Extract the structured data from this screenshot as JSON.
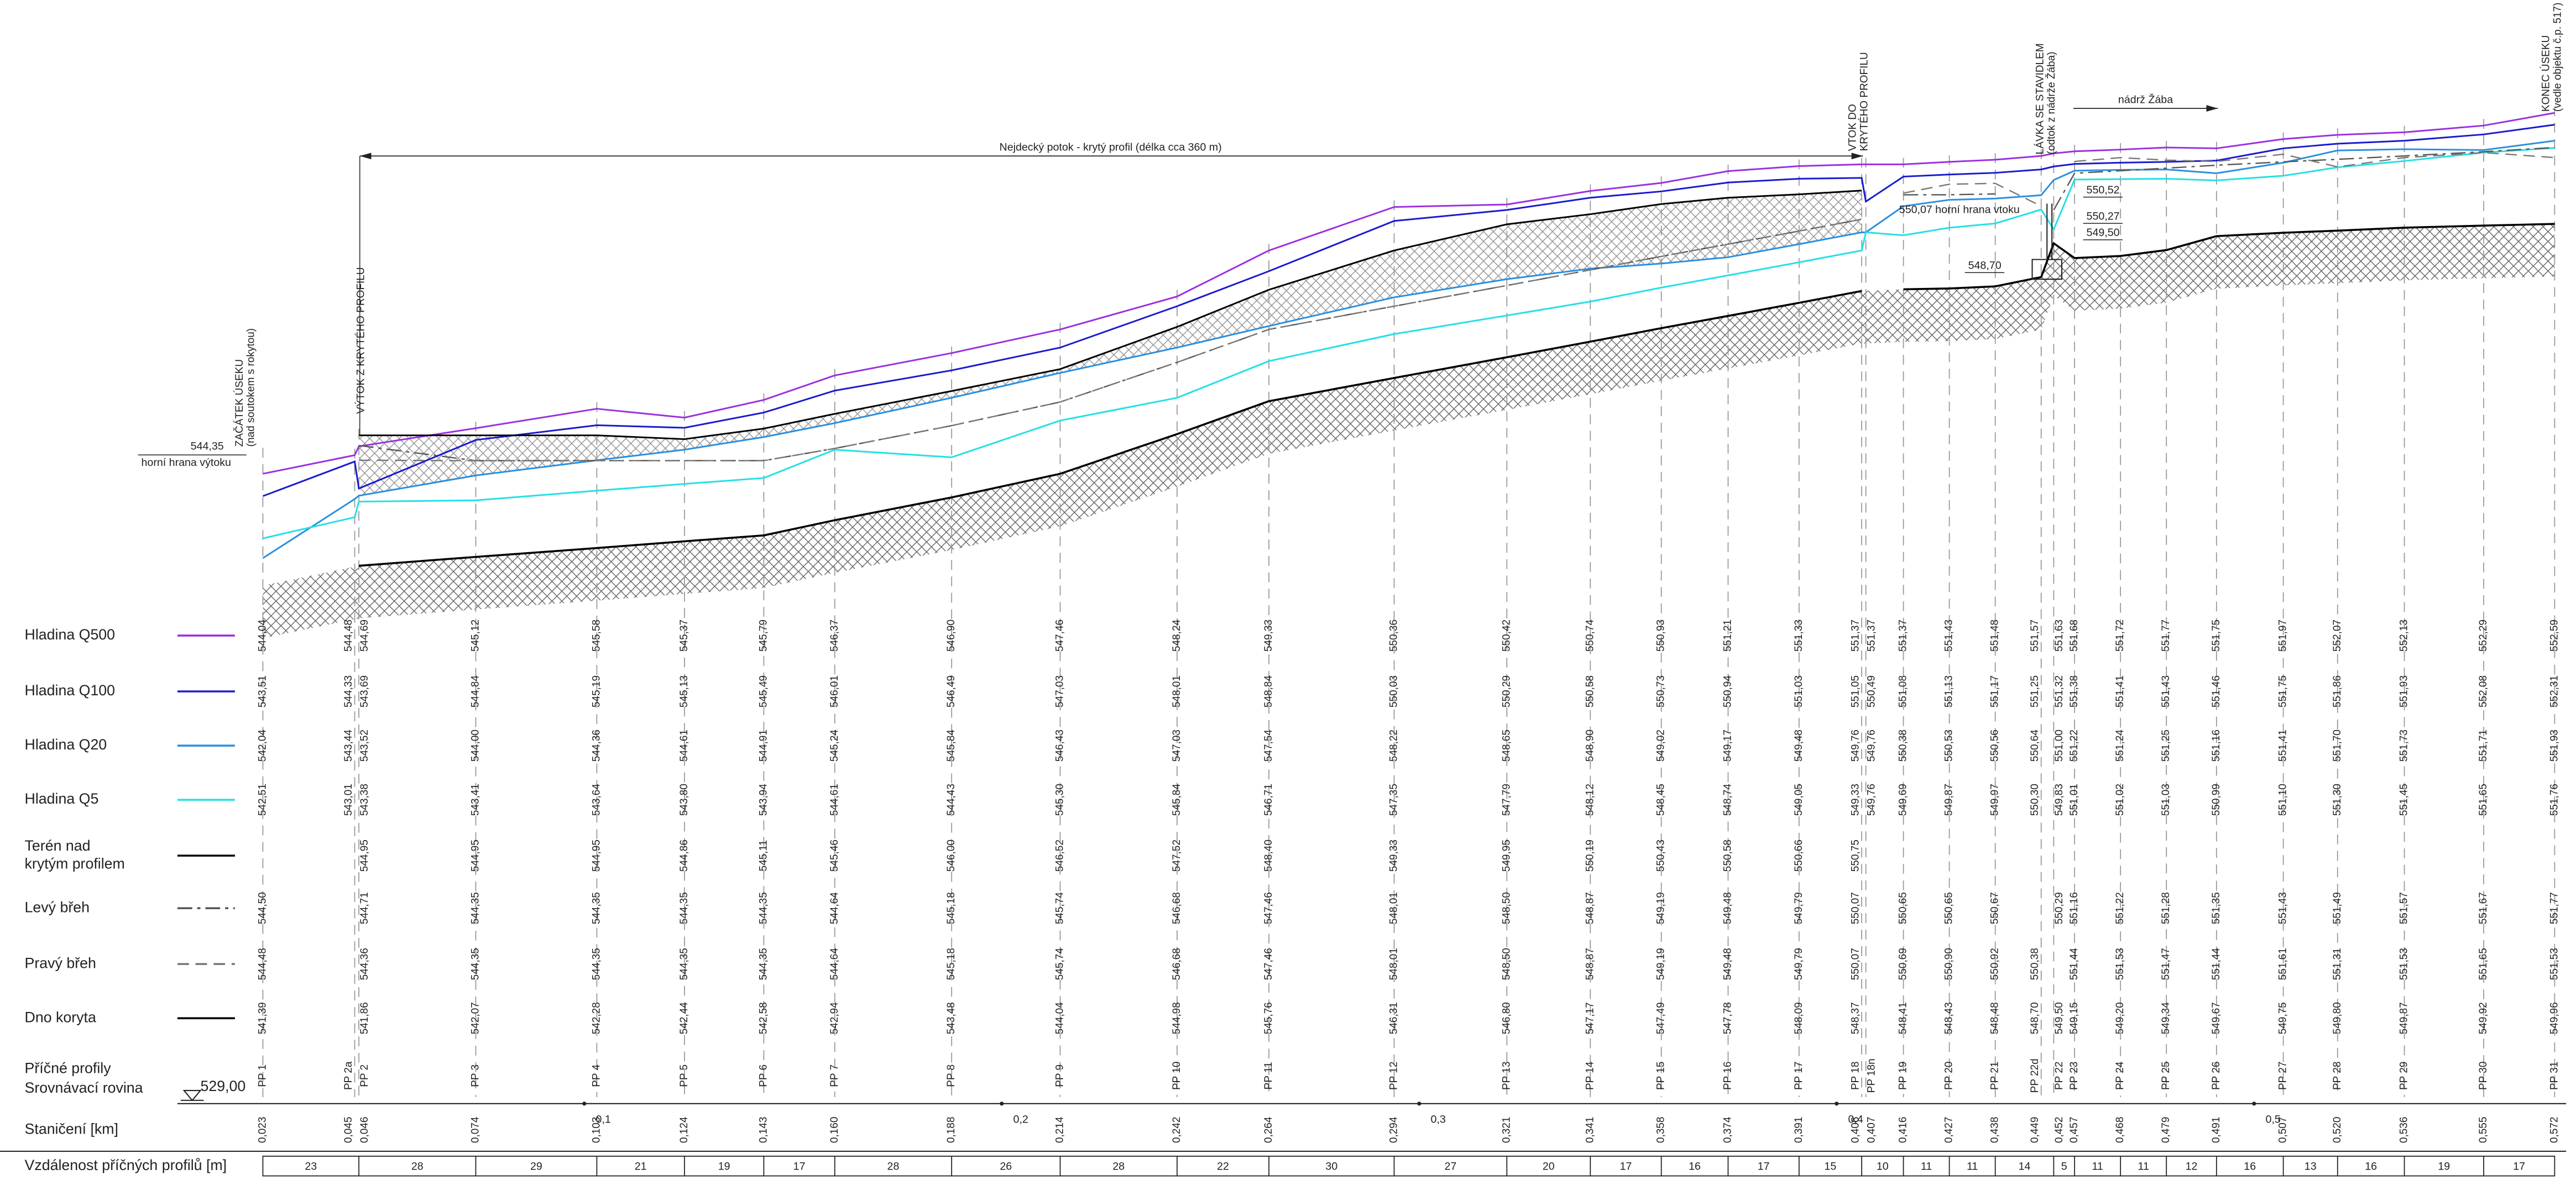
{
  "legend": [
    {
      "label": [
        "Hladina Q500"
      ],
      "color": "#9b30e0"
    },
    {
      "label": [
        "Hladina Q100"
      ],
      "color": "#1a1ad0"
    },
    {
      "label": [
        "Hladina Q20"
      ],
      "color": "#2a8fe0"
    },
    {
      "label": [
        "Hladina Q5"
      ],
      "color": "#22e0e6"
    },
    {
      "label": [
        "Terén nad",
        "krytým profilem"
      ],
      "color": "#000000"
    },
    {
      "label": [
        "Levý břeh"
      ],
      "color": "#555555"
    },
    {
      "label": [
        "Pravý břeh"
      ],
      "color": "#777777"
    },
    {
      "label": [
        "Dno koryta"
      ],
      "color": "#000000"
    }
  ],
  "rows": {
    "profiles": "Příčné profily",
    "datum": "Srovnávací rovina",
    "datum_value": "529,00",
    "station": "Staničení [km]",
    "lengths": "Vzdálenost příčných profilů [m]"
  },
  "profiles": [
    {
      "name": "PP 1",
      "station": "0,023",
      "values": [
        "544,04",
        "543,51",
        "542,04",
        "542,51",
        null,
        "544,50",
        "544,48",
        "541,39"
      ]
    },
    {
      "name": "PP 2a",
      "station": "0,045",
      "values": [
        "544,48",
        "544,33",
        "543,44",
        "543,01",
        null,
        null,
        null,
        null
      ]
    },
    {
      "name": "PP 2",
      "station": "0,046",
      "values": [
        "544,69",
        "543,69",
        "543,52",
        "543,38",
        "544,95",
        "544,71",
        "544,36",
        "541,86"
      ]
    },
    {
      "name": "PP 3",
      "station": "0,074",
      "values": [
        "545,12",
        "544,84",
        "544,00",
        "543,41",
        "544,95",
        "544,35",
        "544,35",
        "542,07"
      ]
    },
    {
      "name": "PP 4",
      "station": "0,103",
      "values": [
        "545,58",
        "545,19",
        "544,36",
        "543,64",
        "544,95",
        "544,35",
        "544,35",
        "542,28"
      ]
    },
    {
      "name": "PP 5",
      "station": "0,124",
      "values": [
        "545,37",
        "545,13",
        "544,61",
        "543,80",
        "544,86",
        "544,35",
        "544,35",
        "542,44"
      ]
    },
    {
      "name": "PP 6",
      "station": "0,143",
      "values": [
        "545,79",
        "545,49",
        "544,91",
        "543,94",
        "545,11",
        "544,35",
        "544,35",
        "542,58"
      ]
    },
    {
      "name": "PP 7",
      "station": "0,160",
      "values": [
        "546,37",
        "546,01",
        "545,24",
        "544,61",
        "545,46",
        "544,64",
        "544,64",
        "542,94"
      ]
    },
    {
      "name": "PP 8",
      "station": "0,188",
      "values": [
        "546,90",
        "546,49",
        "545,84",
        "544,43",
        "546,00",
        "545,18",
        "545,18",
        "543,48"
      ]
    },
    {
      "name": "PP 9",
      "station": "0,214",
      "values": [
        "547,46",
        "547,03",
        "546,43",
        "545,30",
        "546,52",
        "545,74",
        "545,74",
        "544,04"
      ]
    },
    {
      "name": "PP 10",
      "station": "0,242",
      "values": [
        "548,24",
        "548,01",
        "547,03",
        "545,84",
        "547,52",
        "546,68",
        "546,68",
        "544,98"
      ]
    },
    {
      "name": "PP 11",
      "station": "0,264",
      "values": [
        "549,33",
        "548,84",
        "547,54",
        "546,71",
        "548,40",
        "547,46",
        "547,46",
        "545,76"
      ]
    },
    {
      "name": "PP 12",
      "station": "0,294",
      "values": [
        "550,36",
        "550,03",
        "548,22",
        "547,35",
        "549,33",
        "548,01",
        "548,01",
        "546,31"
      ]
    },
    {
      "name": "PP 13",
      "station": "0,321",
      "values": [
        "550,42",
        "550,29",
        "548,65",
        "547,79",
        "549,95",
        "548,50",
        "548,50",
        "546,80"
      ]
    },
    {
      "name": "PP 14",
      "station": "0,341",
      "values": [
        "550,74",
        "550,58",
        "548,90",
        "548,12",
        "550,19",
        "548,87",
        "548,87",
        "547,17"
      ]
    },
    {
      "name": "PP 15",
      "station": "0,358",
      "values": [
        "550,93",
        "550,73",
        "549,02",
        "548,45",
        "550,43",
        "549,19",
        "549,19",
        "547,49"
      ]
    },
    {
      "name": "PP 16",
      "station": "0,374",
      "values": [
        "551,21",
        "550,94",
        "549,17",
        "548,74",
        "550,58",
        "549,48",
        "549,48",
        "547,78"
      ]
    },
    {
      "name": "PP 17",
      "station": "0,391",
      "values": [
        "551,33",
        "551,03",
        "549,48",
        "549,05",
        "550,66",
        "549,79",
        "549,79",
        "548,09"
      ]
    },
    {
      "name": "PP 18",
      "station": "0,406",
      "values": [
        "551,37",
        "551,05",
        "549,76",
        "549,33",
        "550,75",
        "550,07",
        "550,07",
        "548,37"
      ]
    },
    {
      "name": "PP 18n",
      "station": "0,407",
      "values": [
        "551,37",
        "550,49",
        "549,76",
        "549,76",
        null,
        null,
        null,
        null
      ]
    },
    {
      "name": "PP 19",
      "station": "0,416",
      "values": [
        "551,37",
        "551,08",
        "550,38",
        "549,69",
        null,
        "550,65",
        "550,69",
        "548,41"
      ]
    },
    {
      "name": "PP 20",
      "station": "0,427",
      "values": [
        "551,43",
        "551,13",
        "550,53",
        "549,87",
        null,
        "550,65",
        "550,90",
        "548,43"
      ]
    },
    {
      "name": "PP 21",
      "station": "0,438",
      "values": [
        "551,48",
        "551,17",
        "550,56",
        "549,97",
        null,
        "550,67",
        "550,92",
        "548,48"
      ]
    },
    {
      "name": "PP 22d",
      "station": "0,449",
      "values": [
        "551,57",
        "551,25",
        "550,64",
        "550,30",
        null,
        null,
        "550,38",
        "548,70"
      ]
    },
    {
      "name": "PP 22",
      "station": "0,452",
      "values": [
        "551,63",
        "551,32",
        "551,00",
        "549,83",
        null,
        "550,29",
        null,
        "549,50"
      ]
    },
    {
      "name": "PP 23",
      "station": "0,457",
      "values": [
        "551,68",
        "551,38",
        "551,22",
        "551,01",
        null,
        "551,16",
        "551,44",
        "549,15"
      ]
    },
    {
      "name": "PP 24",
      "station": "0,468",
      "values": [
        "551,72",
        "551,41",
        "551,24",
        "551,02",
        null,
        "551,22",
        "551,53",
        "549,20"
      ]
    },
    {
      "name": "PP 25",
      "station": "0,479",
      "values": [
        "551,77",
        "551,43",
        "551,25",
        "551,03",
        null,
        "551,28",
        "551,47",
        "549,34"
      ]
    },
    {
      "name": "PP 26",
      "station": "0,491",
      "values": [
        "551,75",
        "551,46",
        "551,16",
        "550,99",
        null,
        "551,35",
        "551,44",
        "549,67"
      ]
    },
    {
      "name": "PP 27",
      "station": "0,507",
      "values": [
        "551,97",
        "551,75",
        "551,41",
        "551,10",
        null,
        "551,43",
        "551,61",
        "549,75"
      ]
    },
    {
      "name": "PP 28",
      "station": "0,520",
      "values": [
        "552,07",
        "551,86",
        "551,70",
        "551,30",
        null,
        "551,49",
        "551,31",
        "549,80"
      ]
    },
    {
      "name": "PP 29",
      "station": "0,536",
      "values": [
        "552,13",
        "551,93",
        "551,73",
        "551,45",
        null,
        "551,57",
        "551,53",
        "549,87"
      ]
    },
    {
      "name": "PP 30",
      "station": "0,555",
      "values": [
        "552,29",
        "552,08",
        "551,71",
        "551,65",
        null,
        "551,67",
        "551,65",
        "549,92"
      ]
    },
    {
      "name": "PP 31",
      "station": "0,572",
      "values": [
        "552,59",
        "552,31",
        "551,93",
        "551,76",
        null,
        "551,77",
        "551,53",
        "549,96"
      ]
    }
  ],
  "km_marks": [
    "0,1",
    "0,2",
    "0,3",
    "0,4",
    "0,5"
  ],
  "lengths": [
    "23",
    "28",
    "29",
    "21",
    "19",
    "17",
    "28",
    "26",
    "28",
    "22",
    "30",
    "27",
    "20",
    "17",
    "16",
    "17",
    "15",
    "10",
    "11",
    "11",
    "14",
    "5",
    "11",
    "11",
    "12",
    "16",
    "13",
    "16",
    "19",
    "17"
  ],
  "annotations": {
    "start": [
      "ZAČÁTEK ÚSEKU",
      "(nad soutokem s rokytou)"
    ],
    "outlet": [
      "VÝTOK Z KRYTÉHO PROFILU"
    ],
    "culvert": "Nejdecký potok - krytý profil (délka cca 360 m)",
    "inlet": [
      "VTOK DO",
      "KRYTÉHO PROFILU"
    ],
    "footbridge": [
      "LÁVKA SE STAVIDLEM",
      "(odtok z nádrže Žába)"
    ],
    "pond": "nádrž Žába",
    "end": [
      "KONEC ÚSEKU",
      "(vedle objektu č.p. 517)"
    ],
    "outlet_level": [
      "544,35",
      "horní hrana výtoku"
    ],
    "inlet_level": [
      "550,07",
      "horní hrana vtoku"
    ],
    "weir_levels": [
      "550,52",
      "550,27",
      "549,50",
      "548,70"
    ]
  }
}
